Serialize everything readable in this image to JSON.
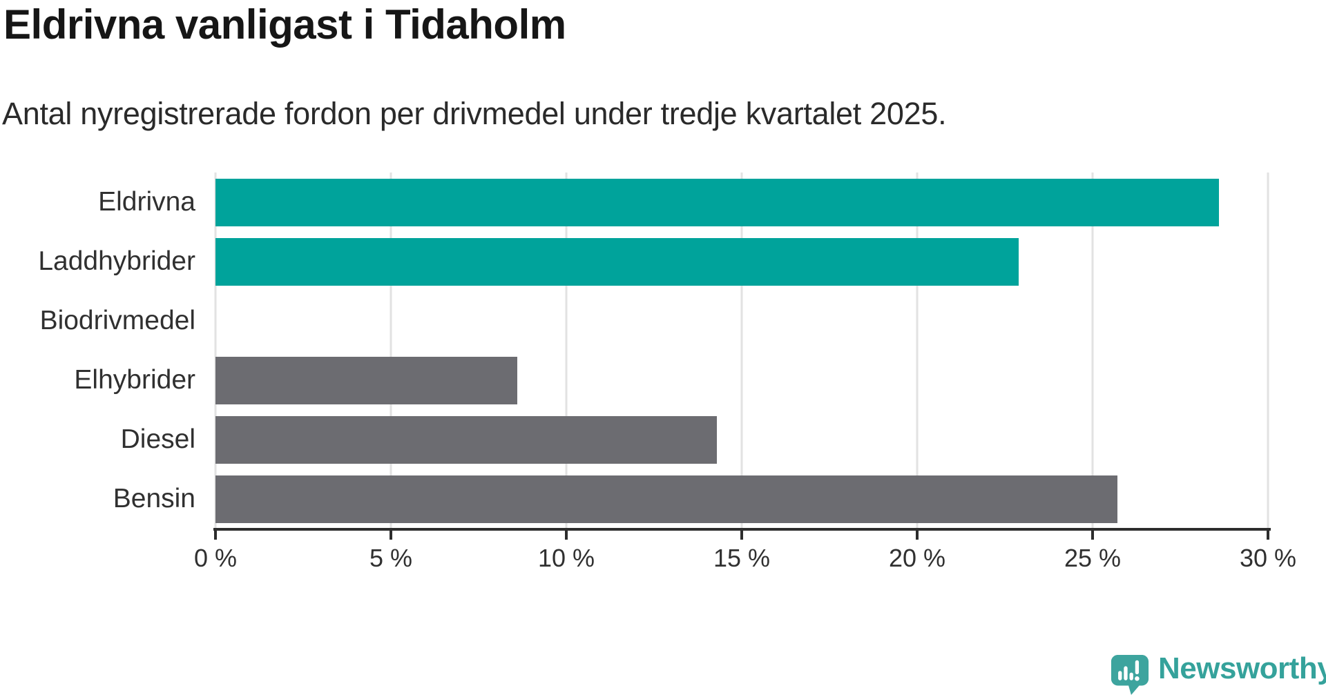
{
  "header": {
    "title": "Eldrivna vanligast i Tidaholm",
    "subtitle": "Antal nyregistrerade fordon per drivmedel under tredje kvartalet 2025."
  },
  "chart_data": {
    "type": "bar",
    "orientation": "horizontal",
    "title": "Eldrivna vanligast i Tidaholm",
    "subtitle": "Antal nyregistrerade fordon per drivmedel under tredje kvartalet 2025.",
    "categories": [
      "Eldrivna",
      "Laddhybrider",
      "Biodrivmedel",
      "Elhybrider",
      "Diesel",
      "Bensin"
    ],
    "values": [
      28.6,
      22.9,
      0,
      8.6,
      14.3,
      25.7
    ],
    "unit": "%",
    "bar_colors": [
      "#00a39b",
      "#00a39b",
      "#6c6c71",
      "#6c6c71",
      "#6c6c71",
      "#6c6c71"
    ],
    "xlim": [
      0,
      30
    ],
    "x_ticks": [
      0,
      5,
      10,
      15,
      20,
      25,
      30
    ],
    "x_tick_labels": [
      "0 %",
      "5 %",
      "10 %",
      "15 %",
      "20 %",
      "25 %",
      "30 %"
    ],
    "grid": true,
    "legend": "none",
    "highlight_color": "#00a39b",
    "base_color": "#6c6c71"
  },
  "branding": {
    "logo_text": "Newsworthy",
    "logo_text_color": "#35a29b",
    "logo_icon": "speech-bubble-with-bar-chart-and-exclamation",
    "logo_icon_color": "#3da49e"
  }
}
